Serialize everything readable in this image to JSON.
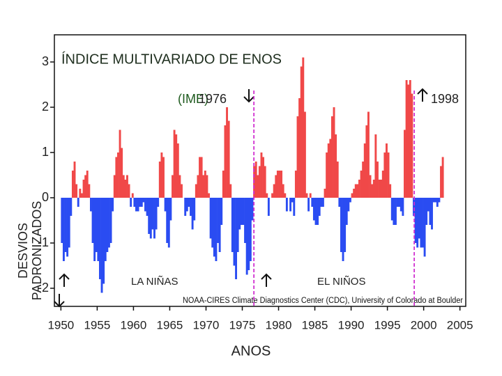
{
  "chart_data": {
    "type": "bar",
    "title": "ÍNDICE MULTIVARIADO DE ENOS",
    "subtitle": "(IME)",
    "x_label": "ANOS",
    "y_label": "DESVIOS PADRONIZADOS",
    "annotations": {
      "year_1976": "1976",
      "year_1998": "1998",
      "la_nina": "LA NIÑAS",
      "el_nino": "EL NIÑOS",
      "source": "NOAA-CIRES Climate Diagnostics Center (CDC), University of Colorado at Boulder"
    },
    "vlines": [
      1976.6,
      1998.7
    ],
    "positive_color": "#f04848",
    "negative_color": "#2a4cf2",
    "vline_color": "#d030d0",
    "xlim": [
      1949.1,
      2005.8
    ],
    "ylim": [
      -2.4,
      3.6
    ],
    "xticks": [
      1950,
      1955,
      1960,
      1965,
      1970,
      1975,
      1980,
      1985,
      1990,
      1995,
      2000,
      2005
    ],
    "yticks": [
      3,
      2,
      1,
      0,
      -1,
      -2
    ],
    "x": [
      1950,
      1950.25,
      1950.5,
      1950.75,
      1951,
      1951.25,
      1951.5,
      1951.75,
      1952,
      1952.25,
      1952.5,
      1952.75,
      1953,
      1953.25,
      1953.5,
      1953.75,
      1954,
      1954.25,
      1954.5,
      1954.75,
      1955,
      1955.25,
      1955.5,
      1955.75,
      1956,
      1956.25,
      1956.5,
      1956.75,
      1957,
      1957.25,
      1957.5,
      1957.75,
      1958,
      1958.25,
      1958.5,
      1958.75,
      1959,
      1959.25,
      1959.5,
      1959.75,
      1960,
      1960.25,
      1960.5,
      1960.75,
      1961,
      1961.25,
      1961.5,
      1961.75,
      1962,
      1962.25,
      1962.5,
      1962.75,
      1963,
      1963.25,
      1963.5,
      1963.75,
      1964,
      1964.25,
      1964.5,
      1964.75,
      1965,
      1965.25,
      1965.5,
      1965.75,
      1966,
      1966.25,
      1966.5,
      1966.75,
      1967,
      1967.25,
      1967.5,
      1967.75,
      1968,
      1968.25,
      1968.5,
      1968.75,
      1969,
      1969.25,
      1969.5,
      1969.75,
      1970,
      1970.25,
      1970.5,
      1970.75,
      1971,
      1971.25,
      1971.5,
      1971.75,
      1972,
      1972.25,
      1972.5,
      1972.75,
      1973,
      1973.25,
      1973.5,
      1973.75,
      1974,
      1974.25,
      1974.5,
      1974.75,
      1975,
      1975.25,
      1975.5,
      1975.75,
      1976,
      1976.25,
      1976.5,
      1976.75,
      1977,
      1977.25,
      1977.5,
      1977.75,
      1978,
      1978.25,
      1978.5,
      1978.75,
      1979,
      1979.25,
      1979.5,
      1979.75,
      1980,
      1980.25,
      1980.5,
      1980.75,
      1981,
      1981.25,
      1981.5,
      1981.75,
      1982,
      1982.25,
      1982.5,
      1982.75,
      1983,
      1983.25,
      1983.5,
      1983.75,
      1984,
      1984.25,
      1984.5,
      1984.75,
      1985,
      1985.25,
      1985.5,
      1985.75,
      1986,
      1986.25,
      1986.5,
      1986.75,
      1987,
      1987.25,
      1987.5,
      1987.75,
      1988,
      1988.25,
      1988.5,
      1988.75,
      1989,
      1989.25,
      1989.5,
      1989.75,
      1990,
      1990.25,
      1990.5,
      1990.75,
      1991,
      1991.25,
      1991.5,
      1991.75,
      1992,
      1992.25,
      1992.5,
      1992.75,
      1993,
      1993.25,
      1993.5,
      1993.75,
      1994,
      1994.25,
      1994.5,
      1994.75,
      1995,
      1995.25,
      1995.5,
      1995.75,
      1996,
      1996.25,
      1996.5,
      1996.75,
      1997,
      1997.25,
      1997.5,
      1997.75,
      1998,
      1998.25,
      1998.5,
      1998.75,
      1999,
      1999.25,
      1999.5,
      1999.75,
      2000,
      2000.25,
      2000.5,
      2000.75,
      2001,
      2001.25,
      2001.5,
      2001.75,
      2002,
      2002.25,
      2002.5
    ],
    "values": [
      -1.0,
      -1.4,
      -1.2,
      -1.3,
      -1.1,
      -0.4,
      0.6,
      0.8,
      0.3,
      -0.2,
      0.2,
      0.1,
      0.4,
      0.5,
      0.6,
      0.3,
      -0.3,
      -1.0,
      -1.4,
      -1.2,
      -1.4,
      -1.8,
      -2.1,
      -1.9,
      -1.4,
      -1.2,
      -1.1,
      -1.0,
      -0.3,
      0.5,
      0.9,
      1.0,
      1.5,
      1.1,
      0.5,
      0.4,
      0.5,
      0.3,
      -0.2,
      0.1,
      -0.2,
      -0.3,
      -0.3,
      -0.2,
      -0.2,
      -0.1,
      -0.3,
      -0.4,
      -0.8,
      -0.9,
      -0.7,
      -0.9,
      -0.7,
      -0.2,
      0.8,
      1.0,
      0.9,
      -0.3,
      -1.0,
      -1.1,
      -0.5,
      0.5,
      1.5,
      1.4,
      1.2,
      0.5,
      0.3,
      0.0,
      -0.4,
      -0.3,
      -0.2,
      -0.4,
      -0.7,
      -0.5,
      0.3,
      0.5,
      0.9,
      0.9,
      0.5,
      0.6,
      0.5,
      0.1,
      -0.9,
      -1.1,
      -1.3,
      -1.4,
      -1.0,
      -1.2,
      -0.6,
      0.6,
      1.6,
      2.0,
      1.7,
      0.3,
      -1.2,
      -1.5,
      -1.8,
      -1.2,
      -0.7,
      -0.6,
      -0.6,
      -1.0,
      -1.7,
      -1.6,
      -1.4,
      -0.5,
      0.7,
      0.8,
      0.5,
      0.7,
      1.0,
      0.9,
      0.7,
      0.1,
      -0.4,
      0.0,
      0.1,
      0.3,
      0.5,
      0.6,
      0.6,
      0.6,
      0.3,
      0.1,
      -0.3,
      0.0,
      -0.3,
      -0.1,
      -0.4,
      0.6,
      1.8,
      2.2,
      2.9,
      3.1,
      1.9,
      0.1,
      -0.3,
      0.1,
      -0.2,
      -0.5,
      -0.6,
      -0.6,
      -0.4,
      -0.2,
      -0.2,
      0.2,
      1.0,
      1.2,
      1.3,
      1.8,
      2.0,
      1.4,
      0.8,
      -0.2,
      -1.2,
      -1.4,
      -1.2,
      -0.6,
      -0.3,
      -0.1,
      0.1,
      0.2,
      0.3,
      0.3,
      0.4,
      0.6,
      0.8,
      1.2,
      1.6,
      1.9,
      0.5,
      0.3,
      0.4,
      1.4,
      0.8,
      0.4,
      0.4,
      0.6,
      1.0,
      1.2,
      1.0,
      0.3,
      -0.5,
      -0.6,
      -0.6,
      -0.2,
      -0.2,
      -0.3,
      -0.4,
      1.5,
      2.6,
      2.5,
      2.6,
      2.3,
      -0.4,
      -1.0,
      -1.1,
      -0.9,
      -1.1,
      -1.1,
      -1.3,
      -0.6,
      -0.3,
      -0.6,
      -0.7,
      -0.1,
      -0.1,
      -0.2,
      -0.1,
      0.7,
      0.9
    ]
  }
}
